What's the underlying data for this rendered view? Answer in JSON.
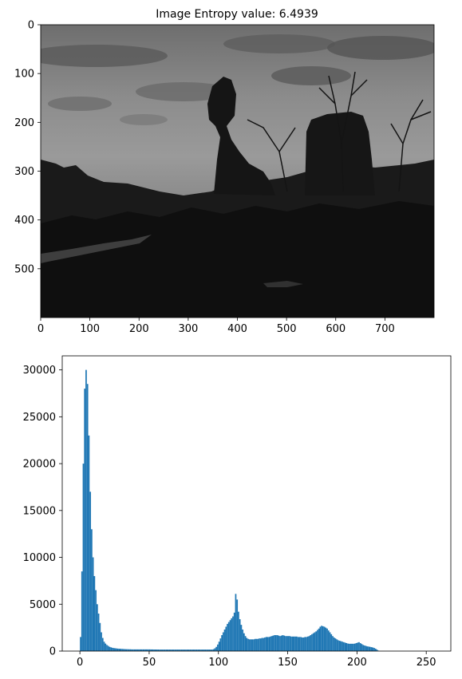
{
  "chart_data": [
    {
      "type": "image",
      "title": "Image Entropy value: 6.4939",
      "x_ticks": [
        0,
        100,
        200,
        300,
        400,
        500,
        600,
        700
      ],
      "y_ticks": [
        0,
        100,
        200,
        300,
        400,
        500
      ],
      "xlim": [
        0,
        800
      ],
      "ylim": [
        600,
        0
      ],
      "image_description": "grayscale photograph: balanced rock silhouette with bare trees against a cloudy sky"
    },
    {
      "type": "bar",
      "title": "",
      "xlabel": "",
      "ylabel": "",
      "x_ticks": [
        0,
        50,
        100,
        150,
        200,
        250
      ],
      "y_ticks": [
        0,
        5000,
        10000,
        15000,
        20000,
        25000,
        30000
      ],
      "xlim": [
        -12.75,
        267.75
      ],
      "ylim": [
        0,
        31500
      ],
      "bin_width": 1,
      "bins_start": 0,
      "color": "#1f77b4",
      "values": [
        1500,
        8500,
        20000,
        28000,
        30000,
        28500,
        23000,
        17000,
        13000,
        10000,
        8000,
        6500,
        5000,
        4000,
        3000,
        2000,
        1400,
        1000,
        800,
        650,
        550,
        450,
        400,
        350,
        320,
        300,
        280,
        260,
        250,
        240,
        230,
        220,
        210,
        200,
        200,
        190,
        190,
        180,
        180,
        180,
        180,
        180,
        180,
        180,
        180,
        180,
        180,
        180,
        180,
        180,
        180,
        175,
        175,
        170,
        170,
        165,
        165,
        160,
        160,
        160,
        160,
        160,
        160,
        160,
        160,
        160,
        160,
        160,
        160,
        160,
        160,
        160,
        160,
        160,
        160,
        160,
        160,
        160,
        160,
        160,
        160,
        160,
        160,
        160,
        160,
        160,
        160,
        160,
        160,
        160,
        160,
        160,
        160,
        160,
        160,
        160,
        200,
        300,
        450,
        700,
        1000,
        1350,
        1700,
        2000,
        2300,
        2600,
        2900,
        3100,
        3300,
        3500,
        3700,
        4100,
        6100,
        5500,
        4200,
        3400,
        2800,
        2300,
        1900,
        1600,
        1400,
        1300,
        1250,
        1250,
        1250,
        1250,
        1300,
        1300,
        1300,
        1350,
        1350,
        1400,
        1400,
        1450,
        1500,
        1500,
        1500,
        1550,
        1600,
        1650,
        1700,
        1700,
        1700,
        1650,
        1600,
        1650,
        1700,
        1650,
        1600,
        1600,
        1600,
        1600,
        1550,
        1550,
        1550,
        1550,
        1550,
        1500,
        1500,
        1500,
        1450,
        1450,
        1500,
        1500,
        1550,
        1600,
        1700,
        1800,
        1900,
        2000,
        2100,
        2250,
        2400,
        2600,
        2700,
        2650,
        2600,
        2500,
        2400,
        2200,
        2000,
        1800,
        1600,
        1450,
        1350,
        1250,
        1150,
        1100,
        1050,
        1000,
        950,
        900,
        850,
        800,
        780,
        780,
        780,
        780,
        800,
        850,
        900,
        950,
        850,
        750,
        650,
        600,
        550,
        500,
        480,
        450,
        420,
        380,
        330,
        250,
        150,
        50,
        0,
        0,
        0,
        0,
        0,
        0,
        0,
        0,
        0,
        0,
        0,
        0,
        0,
        0,
        0,
        0,
        0,
        0,
        0,
        0,
        0,
        0,
        0,
        0,
        0,
        0,
        0,
        0,
        0,
        0,
        0,
        0,
        0,
        0
      ]
    }
  ]
}
